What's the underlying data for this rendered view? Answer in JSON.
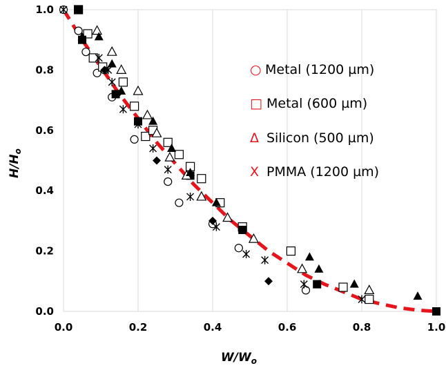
{
  "chart_data": {
    "type": "scatter",
    "xlabel": "W/W",
    "xlabel_sub": "o",
    "ylabel": "H/H",
    "ylabel_sub": "o",
    "xlim": [
      0,
      1
    ],
    "ylim": [
      0,
      1
    ],
    "x_ticks": [
      "0.0",
      "0.2",
      "0.4",
      "0.6",
      "0.8",
      "1.0"
    ],
    "y_ticks": [
      "0.0",
      "0.2",
      "0.4",
      "0.6",
      "0.8",
      "1.0"
    ],
    "grid": "vertical",
    "legend_position": "right",
    "colors": {
      "fit": "#e8141c",
      "legend": "#e8141c",
      "grid": "#d9d9d9",
      "marker": "#000000"
    },
    "legend": [
      {
        "symbol": "○",
        "label": "Metal (1200 µm)"
      },
      {
        "symbol": "□",
        "label": "Metal (600 µm)"
      },
      {
        "symbol": "Δ",
        "label": "Silicon (500 µm)"
      },
      {
        "symbol": "X",
        "label": "PMMA (1200 µm)"
      }
    ],
    "series": [
      {
        "marker": "circle-open",
        "points": [
          [
            0.0,
            1.0
          ],
          [
            0.04,
            0.93
          ],
          [
            0.06,
            0.86
          ],
          [
            0.09,
            0.79
          ],
          [
            0.11,
            0.8
          ],
          [
            0.13,
            0.71
          ],
          [
            0.19,
            0.57
          ],
          [
            0.28,
            0.43
          ],
          [
            0.31,
            0.36
          ],
          [
            0.4,
            0.29
          ],
          [
            0.47,
            0.21
          ],
          [
            0.65,
            0.07
          ]
        ]
      },
      {
        "marker": "square-open",
        "points": [
          [
            0.04,
            1.0
          ],
          [
            0.065,
            0.92
          ],
          [
            0.08,
            0.84
          ],
          [
            0.105,
            0.81
          ],
          [
            0.16,
            0.76
          ],
          [
            0.19,
            0.68
          ],
          [
            0.22,
            0.58
          ],
          [
            0.24,
            0.6
          ],
          [
            0.28,
            0.56
          ],
          [
            0.31,
            0.52
          ],
          [
            0.34,
            0.48
          ],
          [
            0.37,
            0.44
          ],
          [
            0.42,
            0.36
          ],
          [
            0.48,
            0.28
          ],
          [
            0.61,
            0.2
          ],
          [
            0.75,
            0.08
          ],
          [
            0.82,
            0.04
          ]
        ]
      },
      {
        "marker": "square-filled",
        "points": [
          [
            0.04,
            1.0
          ],
          [
            0.05,
            0.9
          ],
          [
            0.14,
            0.72
          ],
          [
            0.2,
            0.63
          ],
          [
            0.34,
            0.45
          ],
          [
            0.48,
            0.27
          ],
          [
            0.68,
            0.09
          ],
          [
            1.0,
            0.0
          ]
        ]
      },
      {
        "marker": "triangle-open",
        "points": [
          [
            0.09,
            0.93
          ],
          [
            0.13,
            0.86
          ],
          [
            0.155,
            0.8
          ],
          [
            0.2,
            0.73
          ],
          [
            0.225,
            0.65
          ],
          [
            0.25,
            0.59
          ],
          [
            0.285,
            0.51
          ],
          [
            0.33,
            0.45
          ],
          [
            0.37,
            0.38
          ],
          [
            0.44,
            0.31
          ],
          [
            0.51,
            0.24
          ],
          [
            0.64,
            0.14
          ],
          [
            0.82,
            0.07
          ]
        ]
      },
      {
        "marker": "triangle-filled",
        "points": [
          [
            0.05,
            0.91
          ],
          [
            0.095,
            0.91
          ],
          [
            0.13,
            0.82
          ],
          [
            0.155,
            0.73
          ],
          [
            0.24,
            0.63
          ],
          [
            0.29,
            0.54
          ],
          [
            0.34,
            0.46
          ],
          [
            0.41,
            0.36
          ],
          [
            0.66,
            0.18
          ],
          [
            0.685,
            0.14
          ],
          [
            0.78,
            0.09
          ],
          [
            0.95,
            0.05
          ]
        ]
      },
      {
        "marker": "diamond-filled",
        "points": [
          [
            0.11,
            0.8
          ],
          [
            0.145,
            0.72
          ],
          [
            0.25,
            0.5
          ],
          [
            0.4,
            0.3
          ],
          [
            0.55,
            0.1
          ]
        ]
      },
      {
        "marker": "asterisk",
        "points": [
          [
            0.0,
            1.0
          ],
          [
            0.095,
            0.84
          ],
          [
            0.12,
            0.8
          ],
          [
            0.13,
            0.76
          ],
          [
            0.16,
            0.67
          ],
          [
            0.2,
            0.62
          ],
          [
            0.24,
            0.54
          ],
          [
            0.28,
            0.47
          ],
          [
            0.34,
            0.38
          ],
          [
            0.41,
            0.28
          ],
          [
            0.49,
            0.19
          ],
          [
            0.54,
            0.17
          ],
          [
            0.645,
            0.09
          ],
          [
            0.8,
            0.04
          ]
        ]
      }
    ],
    "fit_curve": [
      [
        0.0,
        1.0
      ],
      [
        0.05,
        0.9
      ],
      [
        0.1,
        0.81
      ],
      [
        0.15,
        0.72
      ],
      [
        0.2,
        0.64
      ],
      [
        0.25,
        0.56
      ],
      [
        0.3,
        0.49
      ],
      [
        0.35,
        0.42
      ],
      [
        0.4,
        0.36
      ],
      [
        0.45,
        0.3
      ],
      [
        0.5,
        0.25
      ],
      [
        0.55,
        0.2
      ],
      [
        0.6,
        0.16
      ],
      [
        0.65,
        0.12
      ],
      [
        0.7,
        0.09
      ],
      [
        0.75,
        0.065
      ],
      [
        0.8,
        0.04
      ],
      [
        0.85,
        0.025
      ],
      [
        0.9,
        0.012
      ],
      [
        0.95,
        0.004
      ],
      [
        1.0,
        0.0
      ]
    ]
  }
}
